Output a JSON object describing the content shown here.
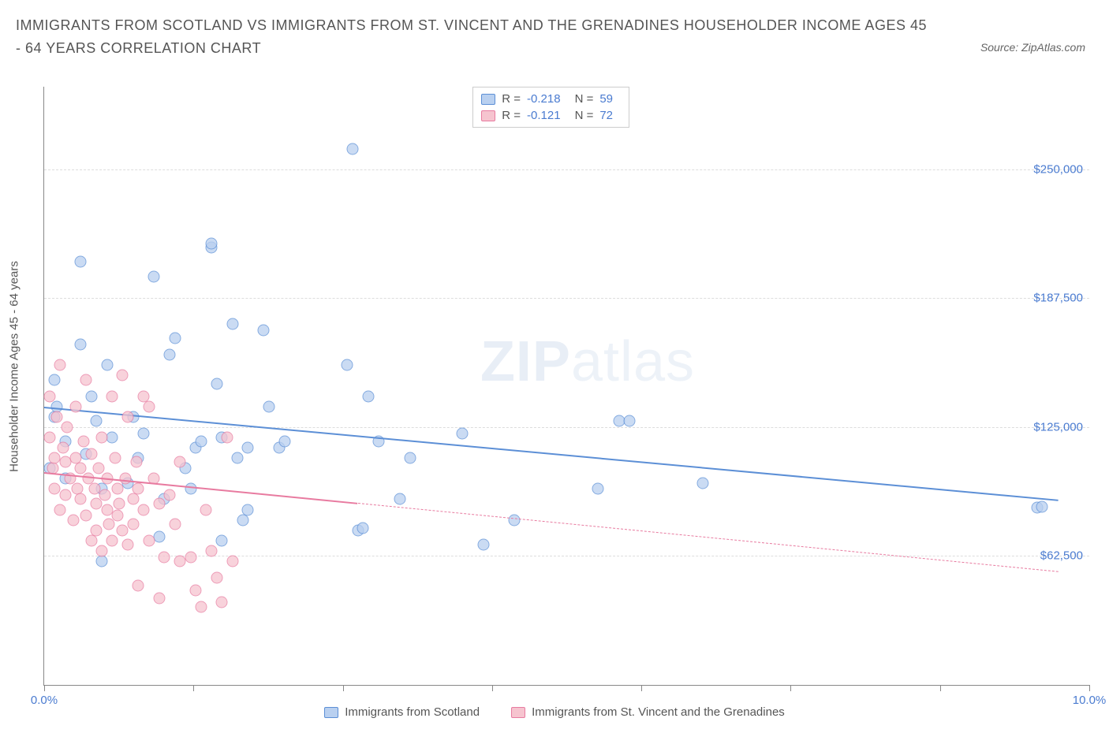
{
  "title": "IMMIGRANTS FROM SCOTLAND VS IMMIGRANTS FROM ST. VINCENT AND THE GRENADINES HOUSEHOLDER INCOME AGES 45 - 64 YEARS CORRELATION CHART",
  "source": "Source: ZipAtlas.com",
  "ylabel": "Householder Income Ages 45 - 64 years",
  "watermark_bold": "ZIP",
  "watermark_thin": "atlas",
  "chart": {
    "type": "scatter",
    "xlim": [
      0,
      10
    ],
    "ylim": [
      0,
      290000
    ],
    "xtick_positions": [
      0,
      1.43,
      2.86,
      4.29,
      5.71,
      7.14,
      8.57,
      10
    ],
    "xtick_labels_shown": {
      "0": "0.0%",
      "10": "10.0%"
    },
    "yticks": [
      62500,
      125000,
      187500,
      250000
    ],
    "ytick_labels": [
      "$62,500",
      "$125,000",
      "$187,500",
      "$250,000"
    ],
    "grid_color": "#dddddd",
    "background_color": "#ffffff",
    "series": [
      {
        "key": "scotland",
        "label": "Immigrants from Scotland",
        "color_fill": "#b9d0f0",
        "color_stroke": "#5c8fd6",
        "marker_size": 15,
        "R": "-0.218",
        "N": "59",
        "trend": {
          "x1": 0,
          "y1": 135000,
          "x2": 9.7,
          "y2": 90000,
          "solid_until_x": 9.7
        },
        "points": [
          [
            0.05,
            105000
          ],
          [
            0.1,
            130000
          ],
          [
            0.1,
            148000
          ],
          [
            0.12,
            135000
          ],
          [
            0.2,
            118000
          ],
          [
            0.2,
            100000
          ],
          [
            0.35,
            205000
          ],
          [
            0.35,
            165000
          ],
          [
            0.4,
            112000
          ],
          [
            0.45,
            140000
          ],
          [
            0.5,
            128000
          ],
          [
            0.55,
            95000
          ],
          [
            0.55,
            60000
          ],
          [
            0.6,
            155000
          ],
          [
            0.65,
            120000
          ],
          [
            0.8,
            98000
          ],
          [
            0.85,
            130000
          ],
          [
            0.9,
            110000
          ],
          [
            0.95,
            122000
          ],
          [
            1.05,
            198000
          ],
          [
            1.1,
            72000
          ],
          [
            1.15,
            90000
          ],
          [
            1.2,
            160000
          ],
          [
            1.25,
            168000
          ],
          [
            1.35,
            105000
          ],
          [
            1.4,
            95000
          ],
          [
            1.45,
            115000
          ],
          [
            1.5,
            118000
          ],
          [
            1.6,
            212000
          ],
          [
            1.6,
            214000
          ],
          [
            1.65,
            146000
          ],
          [
            1.7,
            120000
          ],
          [
            1.7,
            70000
          ],
          [
            1.8,
            175000
          ],
          [
            1.85,
            110000
          ],
          [
            1.9,
            80000
          ],
          [
            1.95,
            115000
          ],
          [
            1.95,
            85000
          ],
          [
            2.1,
            172000
          ],
          [
            2.15,
            135000
          ],
          [
            2.25,
            115000
          ],
          [
            2.3,
            118000
          ],
          [
            2.9,
            155000
          ],
          [
            2.95,
            260000
          ],
          [
            3.0,
            75000
          ],
          [
            3.05,
            76000
          ],
          [
            3.1,
            140000
          ],
          [
            3.2,
            118000
          ],
          [
            3.4,
            90000
          ],
          [
            3.5,
            110000
          ],
          [
            4.0,
            122000
          ],
          [
            4.2,
            68000
          ],
          [
            4.5,
            80000
          ],
          [
            5.3,
            95000
          ],
          [
            5.5,
            128000
          ],
          [
            5.6,
            128000
          ],
          [
            6.3,
            98000
          ],
          [
            9.5,
            86000
          ],
          [
            9.55,
            86500
          ]
        ]
      },
      {
        "key": "stvincent",
        "label": "Immigrants from St. Vincent and the Grenadines",
        "color_fill": "#f6c4cf",
        "color_stroke": "#e87ba0",
        "marker_size": 15,
        "R": "-0.121",
        "N": "72",
        "trend": {
          "x1": 0,
          "y1": 103000,
          "x2": 9.7,
          "y2": 55000,
          "solid_until_x": 3.0
        },
        "points": [
          [
            0.05,
            140000
          ],
          [
            0.05,
            120000
          ],
          [
            0.08,
            105000
          ],
          [
            0.1,
            110000
          ],
          [
            0.1,
            95000
          ],
          [
            0.12,
            130000
          ],
          [
            0.15,
            155000
          ],
          [
            0.15,
            85000
          ],
          [
            0.18,
            115000
          ],
          [
            0.2,
            108000
          ],
          [
            0.2,
            92000
          ],
          [
            0.22,
            125000
          ],
          [
            0.25,
            100000
          ],
          [
            0.28,
            80000
          ],
          [
            0.3,
            135000
          ],
          [
            0.3,
            110000
          ],
          [
            0.32,
            95000
          ],
          [
            0.35,
            105000
          ],
          [
            0.35,
            90000
          ],
          [
            0.38,
            118000
          ],
          [
            0.4,
            148000
          ],
          [
            0.4,
            82000
          ],
          [
            0.42,
            100000
          ],
          [
            0.45,
            112000
          ],
          [
            0.45,
            70000
          ],
          [
            0.48,
            95000
          ],
          [
            0.5,
            88000
          ],
          [
            0.5,
            75000
          ],
          [
            0.52,
            105000
          ],
          [
            0.55,
            120000
          ],
          [
            0.55,
            65000
          ],
          [
            0.58,
            92000
          ],
          [
            0.6,
            100000
          ],
          [
            0.6,
            85000
          ],
          [
            0.62,
            78000
          ],
          [
            0.65,
            140000
          ],
          [
            0.65,
            70000
          ],
          [
            0.68,
            110000
          ],
          [
            0.7,
            95000
          ],
          [
            0.7,
            82000
          ],
          [
            0.72,
            88000
          ],
          [
            0.75,
            150000
          ],
          [
            0.75,
            75000
          ],
          [
            0.78,
            100000
          ],
          [
            0.8,
            130000
          ],
          [
            0.8,
            68000
          ],
          [
            0.85,
            90000
          ],
          [
            0.85,
            78000
          ],
          [
            0.88,
            108000
          ],
          [
            0.9,
            95000
          ],
          [
            0.9,
            48000
          ],
          [
            0.95,
            140000
          ],
          [
            0.95,
            85000
          ],
          [
            1.0,
            135000
          ],
          [
            1.0,
            70000
          ],
          [
            1.05,
            100000
          ],
          [
            1.1,
            88000
          ],
          [
            1.1,
            42000
          ],
          [
            1.15,
            62000
          ],
          [
            1.2,
            92000
          ],
          [
            1.25,
            78000
          ],
          [
            1.3,
            60000
          ],
          [
            1.3,
            108000
          ],
          [
            1.4,
            62000
          ],
          [
            1.45,
            46000
          ],
          [
            1.5,
            38000
          ],
          [
            1.55,
            85000
          ],
          [
            1.6,
            65000
          ],
          [
            1.65,
            52000
          ],
          [
            1.7,
            40000
          ],
          [
            1.75,
            120000
          ],
          [
            1.8,
            60000
          ]
        ]
      }
    ]
  },
  "stats_labels": {
    "R": "R =",
    "N": "N ="
  },
  "legend_bottom": [
    {
      "series": "scotland"
    },
    {
      "series": "stvincent"
    }
  ]
}
